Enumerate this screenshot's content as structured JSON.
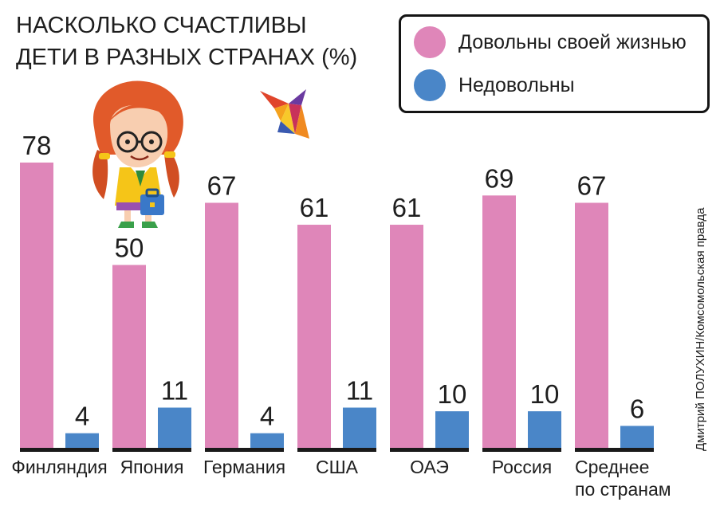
{
  "title_lines": [
    "НАСКОЛЬКО СЧАСТЛИВЫ",
    "ДЕТИ В РАЗНЫХ СТРАНАХ (%)"
  ],
  "credit": "Дмитрий ПОЛУХИН/Комсомольская правда",
  "colors": {
    "satisfied": "#df86b9",
    "unsatisfied": "#4a86c8",
    "baseline": "#1a1a1a"
  },
  "chart_data": {
    "type": "bar",
    "title": "НАСКОЛЬКО СЧАСТЛИВЫ ДЕТИ В РАЗНЫХ СТРАНАХ (%)",
    "categories": [
      [
        "Финляндия"
      ],
      [
        "Япония"
      ],
      [
        "Германия"
      ],
      [
        "США"
      ],
      [
        "ОАЭ"
      ],
      [
        "Россия"
      ],
      [
        "Среднее",
        "по странам"
      ]
    ],
    "series": [
      {
        "name": "Довольны своей жизнью",
        "values": [
          78,
          50,
          67,
          61,
          61,
          69,
          67
        ]
      },
      {
        "name": "Недовольны",
        "values": [
          4,
          11,
          4,
          11,
          10,
          10,
          6
        ]
      }
    ],
    "ylim": [
      0,
      78
    ],
    "grid": false,
    "legend_position": "top-right"
  }
}
